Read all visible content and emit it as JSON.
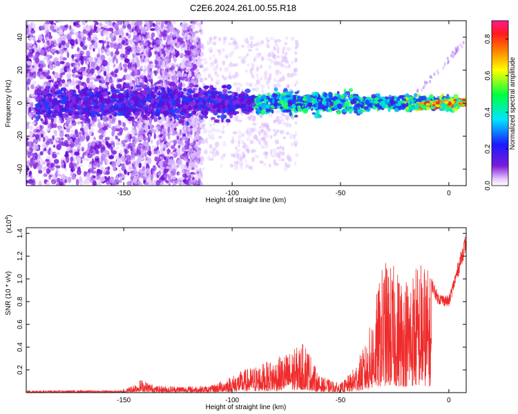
{
  "title": "C2E6.2024.261.00.55.R18",
  "colors": {
    "snr_line": "#ef2b2b",
    "spectrogram_hot": "#ff1a1a",
    "spectrogram_low": "#7a1bd9"
  },
  "chart_data": [
    {
      "type": "heatmap",
      "name": "spectrogram",
      "xlabel": "Height of straight line (km)",
      "ylabel": "Frequency (Hz)",
      "xlim": [
        -195,
        8
      ],
      "ylim": [
        -50,
        50
      ],
      "xticks": [
        -150,
        -100,
        -50,
        0
      ],
      "yticks": [
        -40,
        -20,
        0,
        20,
        40
      ],
      "colorbar": {
        "label": "Normalized spectral amplitude",
        "range": [
          0.0,
          0.9
        ],
        "ticks": [
          "0.0",
          "0.2",
          "0.4",
          "0.6",
          "0.8"
        ],
        "colormap": "rainbow (violet → blue → cyan → green → yellow → orange → red → magenta)"
      },
      "description_of_features": {
        "broad_noise_region_km": [
          -195,
          -120
        ],
        "centered_signal_band_hz": [
          -8,
          8
        ],
        "strong_signal_region_km": [
          -20,
          8
        ],
        "strong_signal_freq_hz": 0
      }
    },
    {
      "type": "line",
      "name": "snr",
      "xlabel": "Height of straight line (km)",
      "ylabel": "SNR (10 * v/v)",
      "scale_label": "(x10",
      "scale_exponent": "4",
      "xlim": [
        -195,
        8
      ],
      "ylim": [
        0,
        1.45
      ],
      "xticks": [
        -150,
        -100,
        -50,
        0
      ],
      "yticks": [
        "0.2",
        "0.4",
        "0.6",
        "0.8",
        "1.0",
        "1.2",
        "1.4"
      ],
      "envelope": [
        {
          "x": -195,
          "y": 0.02
        },
        {
          "x": -150,
          "y": 0.02
        },
        {
          "x": -142,
          "y": 0.12
        },
        {
          "x": -135,
          "y": 0.06
        },
        {
          "x": -110,
          "y": 0.06
        },
        {
          "x": -95,
          "y": 0.2
        },
        {
          "x": -80,
          "y": 0.3
        },
        {
          "x": -72,
          "y": 0.38
        },
        {
          "x": -66,
          "y": 0.45
        },
        {
          "x": -60,
          "y": 0.15
        },
        {
          "x": -50,
          "y": 0.08
        },
        {
          "x": -45,
          "y": 0.18
        },
        {
          "x": -38,
          "y": 0.45
        },
        {
          "x": -30,
          "y": 1.18
        },
        {
          "x": -20,
          "y": 1.05
        },
        {
          "x": -12,
          "y": 1.2
        },
        {
          "x": -5,
          "y": 0.88
        },
        {
          "x": 0,
          "y": 0.85
        },
        {
          "x": 8,
          "y": 1.42
        }
      ]
    }
  ]
}
